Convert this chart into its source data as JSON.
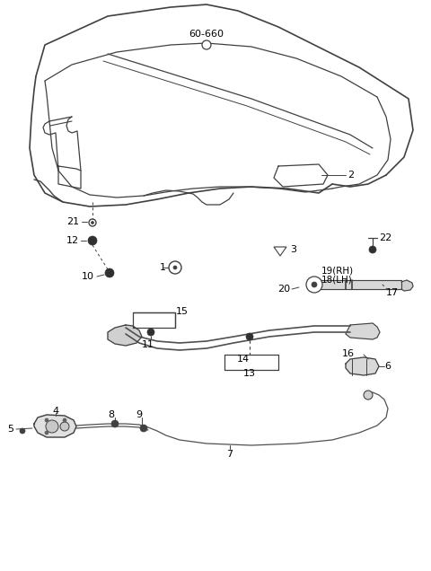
{
  "bg_color": "#ffffff",
  "lc": "#404040",
  "lc_thin": "#606060",
  "figsize": [
    4.8,
    6.36
  ],
  "dpi": 100
}
